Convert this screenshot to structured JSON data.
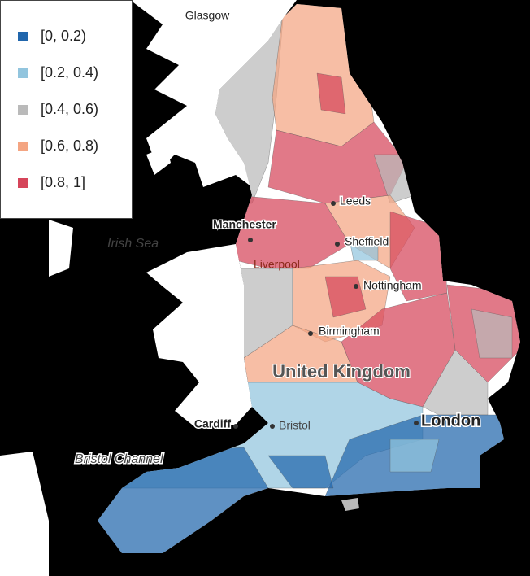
{
  "legend": {
    "items": [
      {
        "label": "[0, 0.2)",
        "color": "#2166ac"
      },
      {
        "label": "[0.2, 0.4)",
        "color": "#92c5de"
      },
      {
        "label": "[0.4, 0.6)",
        "color": "#bababa"
      },
      {
        "label": "[0.6, 0.8)",
        "color": "#f4a582"
      },
      {
        "label": "[0.8, 1]",
        "color": "#d6455a"
      }
    ]
  },
  "places": {
    "glasgow": "Glasgow",
    "irish_sea": "Irish Sea",
    "manchester": "Manchester",
    "leeds": "Leeds",
    "sheffield": "Sheffield",
    "liverpool": "Liverpool",
    "nottingham": "Nottingham",
    "birmingham": "Birmingham",
    "country": "United Kingdom",
    "cardiff": "Cardiff",
    "bristol": "Bristol",
    "london": "London",
    "bristol_channel": "Bristol Channel"
  }
}
